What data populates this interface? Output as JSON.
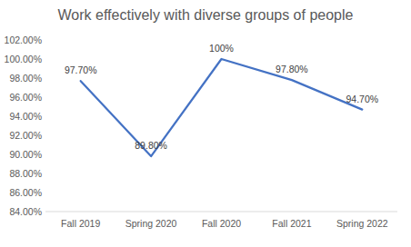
{
  "chart_data": {
    "type": "line",
    "title": "Work effectively with diverse groups of people",
    "categories": [
      "Fall 2019",
      "Spring 2020",
      "Fall 2020",
      "Fall 2021",
      "Spring 2022"
    ],
    "values": [
      97.7,
      89.8,
      100,
      97.8,
      94.7
    ],
    "value_labels": [
      "97.70%",
      "89.80%",
      "100%",
      "97.80%",
      "94.70%"
    ],
    "color": "#4472c4",
    "ylim": [
      84,
      102
    ],
    "yticks": [
      {
        "value": 84,
        "label": "84.00%"
      },
      {
        "value": 86,
        "label": "86.00%"
      },
      {
        "value": 88,
        "label": "88.00%"
      },
      {
        "value": 90,
        "label": "90.00%"
      },
      {
        "value": 92,
        "label": "92.00%"
      },
      {
        "value": 94,
        "label": "94.00%"
      },
      {
        "value": 96,
        "label": "96.00%"
      },
      {
        "value": 98,
        "label": "98.00%"
      },
      {
        "value": 100,
        "label": "100.00%"
      },
      {
        "value": 102,
        "label": "102.00%"
      }
    ],
    "grid": false,
    "data_labels": true
  }
}
